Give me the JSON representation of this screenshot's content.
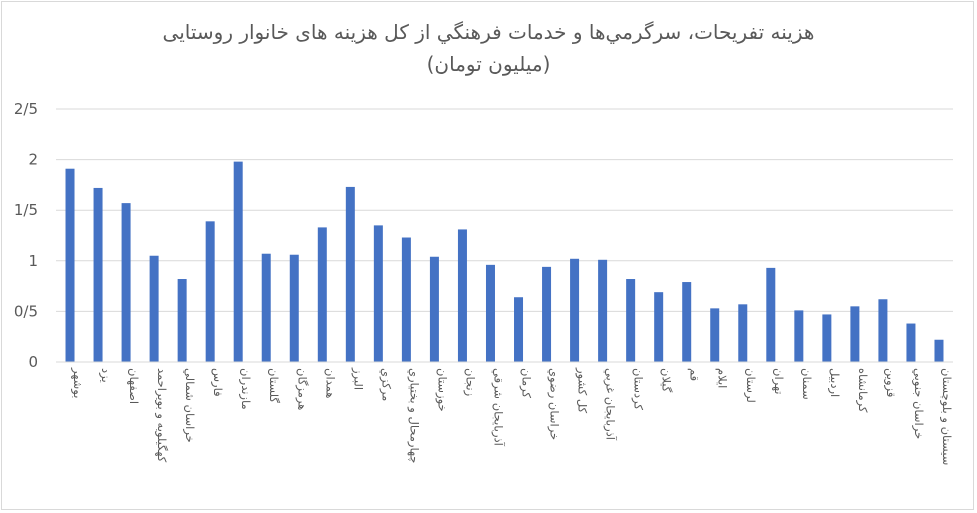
{
  "chart_data": {
    "type": "bar",
    "title": "هزينه تفريحات، سرگرمي‌ها و خدمات فرهنگي از کل هزينه های خانوار روستايی",
    "subtitle": "(ميليون تومان)",
    "xlabel": "",
    "ylabel": "",
    "ylim": [
      0,
      2.5
    ],
    "yticks": [
      {
        "value": 0,
        "label": "0"
      },
      {
        "value": 0.5,
        "label": "0/5"
      },
      {
        "value": 1,
        "label": "1"
      },
      {
        "value": 1.5,
        "label": "1/5"
      },
      {
        "value": 2,
        "label": "2"
      },
      {
        "value": 2.5,
        "label": "2/5"
      }
    ],
    "grid": true,
    "legend": "none",
    "bar_color": "#4472c4",
    "gridline_color": "#d9d9d9",
    "categories": [
      "بوشهر",
      "يزد",
      "اصفهان",
      "کهگيلويه و بويراحمد",
      "خراسان شمالي",
      "فارس",
      "مازندران",
      "گلستان",
      "هرمزگان",
      "همدان",
      "البرز",
      "مرکزي",
      "چهارمحال و بختياري",
      "خوزستان",
      "زنجان",
      "آذربايجان شرقي",
      "کرمان",
      "خراسان رضوي",
      "کل کشور",
      "آذربايجان غربي",
      "کردستان",
      "گيلان",
      "قم",
      "ايلام",
      "لرستان",
      "تهران",
      "سمنان",
      "اردبيل",
      "کرمانشاه",
      "قزوين",
      "خراسان جنوبي",
      "سيستان و بلوچستان"
    ],
    "values": [
      1.91,
      1.72,
      1.57,
      1.05,
      0.82,
      1.39,
      1.98,
      1.07,
      1.06,
      1.33,
      1.73,
      1.35,
      1.23,
      1.04,
      1.31,
      0.96,
      0.64,
      0.94,
      1.02,
      1.01,
      0.82,
      0.69,
      0.79,
      0.53,
      0.57,
      0.93,
      0.51,
      0.47,
      0.55,
      0.62,
      0.38,
      0.22
    ]
  }
}
